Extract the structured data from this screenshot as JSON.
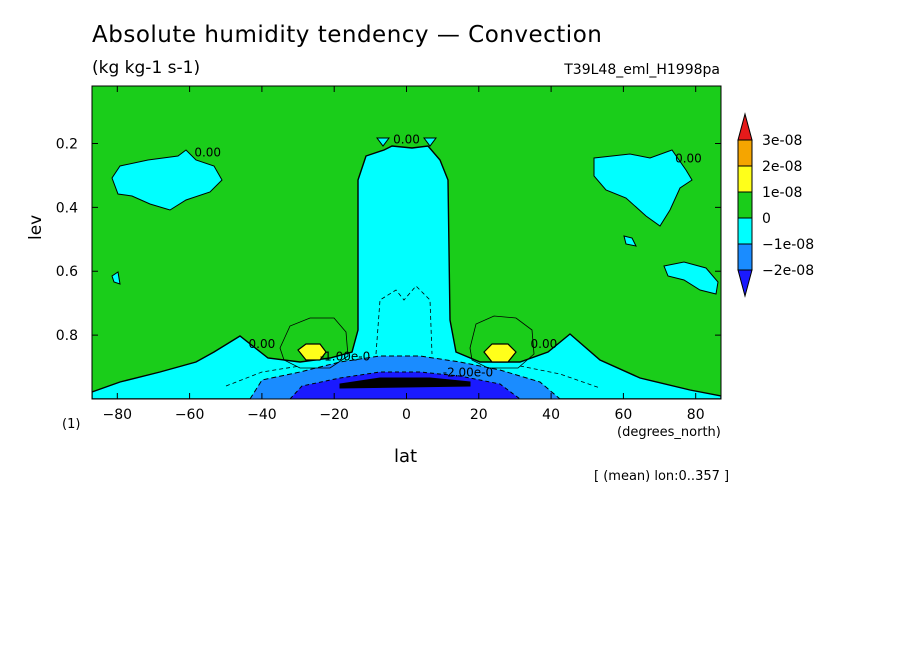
{
  "chart_data": {
    "type": "contour",
    "title": "Absolute humidity tendency — Convection",
    "units": "(kg kg-1 s-1)",
    "run_label": "T39L48_eml_H1998pa",
    "xlabel": "lat",
    "xunits": "(degrees_north)",
    "ylabel": "lev",
    "ylabel_note": "(1)",
    "mean_note": "[ (mean) lon:0..357 ]",
    "xlim": [
      -87,
      87
    ],
    "ylim": [
      1.0,
      0.02
    ],
    "y_inverted": true,
    "x_ticks": [
      -80,
      -60,
      -40,
      -20,
      0,
      20,
      40,
      60,
      80
    ],
    "y_ticks": [
      0.2,
      0.4,
      0.6,
      0.8
    ],
    "colorbar": {
      "levels": [
        "3e-08",
        "2e-08",
        "1e-08",
        "0",
        "−1e-08",
        "−2e-08"
      ],
      "colors": [
        "#e51a1a",
        "#f5a500",
        "#ffff1a",
        "#1acd1a",
        "#00ffff",
        "#1a8cff",
        "#1a1aff"
      ]
    },
    "contour_labels": [
      {
        "text": "0.00",
        "lat": -55,
        "lev": 0.24
      },
      {
        "text": "0.00",
        "lat": 0,
        "lev": 0.2
      },
      {
        "text": "0.00",
        "lat": 78,
        "lev": 0.26
      },
      {
        "text": "0.00",
        "lat": -40,
        "lev": 0.84
      },
      {
        "text": "0.00",
        "lat": 38,
        "lev": 0.84
      },
      {
        "text": "-1.00e-0",
        "lat": -17,
        "lev": 0.88
      },
      {
        "text": "-2.00e-0",
        "lat": 17,
        "lev": 0.93
      }
    ]
  }
}
